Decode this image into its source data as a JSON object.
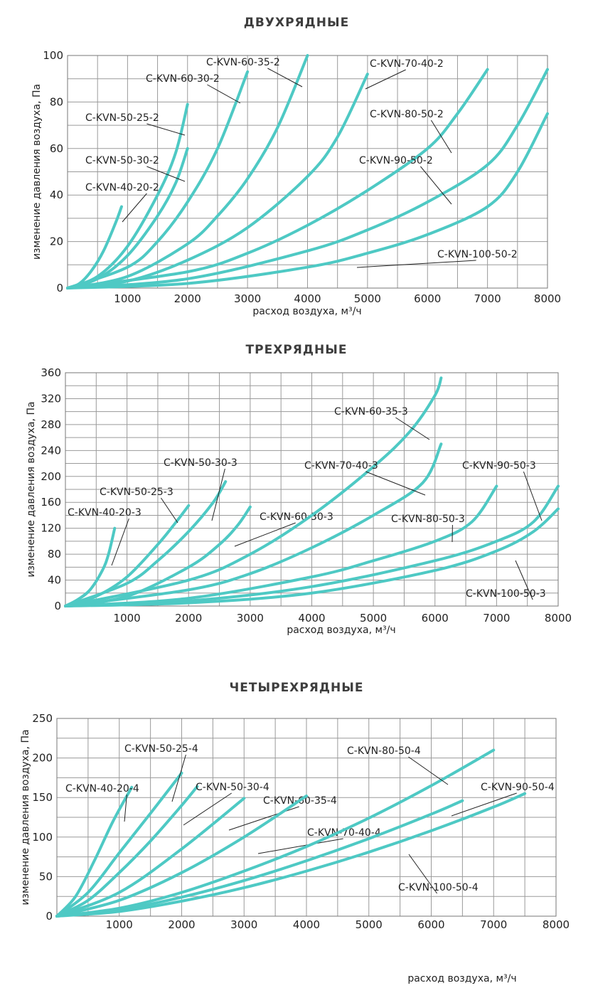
{
  "chart_data": [
    {
      "type": "line",
      "title": "ДВУХРЯДНЫЕ",
      "xlabel": "расход воздуха, м³/ч",
      "ylabel": "изменение давления воздуха, Па",
      "xlim": [
        0,
        8000
      ],
      "ylim": [
        0,
        100
      ],
      "xticks": [
        1000,
        2000,
        3000,
        4000,
        5000,
        6000,
        7000,
        8000
      ],
      "yticks": [
        0,
        20,
        40,
        60,
        80,
        100
      ],
      "grid": true,
      "line_color": "#4ec9c4",
      "series": [
        {
          "name": "C-KVN-40-20-2",
          "x": [
            0,
            200,
            400,
            600,
            800,
            900
          ],
          "y": [
            0,
            2,
            7.5,
            16,
            28,
            35
          ]
        },
        {
          "name": "C-KVN-50-25-2",
          "x": [
            0,
            500,
            1000,
            1500,
            1800,
            2000
          ],
          "y": [
            0,
            5,
            18,
            40,
            58,
            79
          ]
        },
        {
          "name": "C-KVN-50-30-2",
          "x": [
            0,
            500,
            1000,
            1500,
            1800,
            2000
          ],
          "y": [
            0,
            4,
            14,
            31,
            45,
            60
          ]
        },
        {
          "name": "C-KVN-60-30-2",
          "x": [
            0,
            1000,
            1500,
            2000,
            2500,
            3000
          ],
          "y": [
            0,
            9,
            20,
            37,
            60,
            93
          ]
        },
        {
          "name": "C-KVN-60-35-2",
          "x": [
            0,
            1000,
            2000,
            2500,
            3000,
            3500,
            4000
          ],
          "y": [
            0,
            5,
            19,
            31,
            47,
            69,
            100
          ]
        },
        {
          "name": "C-KVN-70-40-2",
          "x": [
            0,
            1000,
            2000,
            3000,
            4000,
            4500,
            5000
          ],
          "y": [
            0,
            3,
            12,
            26,
            48,
            65,
            92
          ]
        },
        {
          "name": "C-KVN-80-50-2",
          "x": [
            0,
            2000,
            3000,
            4000,
            5000,
            6000,
            6500,
            7000
          ],
          "y": [
            0,
            7,
            15,
            27,
            42,
            60,
            75,
            94
          ]
        },
        {
          "name": "C-KVN-90-50-2",
          "x": [
            0,
            2000,
            4000,
            5000,
            6000,
            7000,
            7500,
            8000
          ],
          "y": [
            0,
            4,
            16,
            25,
            37,
            53,
            70,
            94
          ]
        },
        {
          "name": "C-KVN-100-50-2",
          "x": [
            0,
            2000,
            4000,
            5000,
            6000,
            7000,
            7500,
            8000
          ],
          "y": [
            0,
            2,
            9,
            15,
            23,
            35,
            50,
            75
          ]
        }
      ]
    },
    {
      "type": "line",
      "title": "ТРЕХРЯДНЫЕ",
      "xlabel": "расход воздуха, м³/ч",
      "ylabel": "изменение давления воздуха, Па",
      "xlim": [
        0,
        8000
      ],
      "ylim": [
        0,
        360
      ],
      "xticks": [
        1000,
        2000,
        3000,
        4000,
        5000,
        6000,
        7000,
        8000
      ],
      "yticks": [
        0,
        40,
        80,
        120,
        160,
        200,
        240,
        280,
        320,
        360
      ],
      "grid": true,
      "line_color": "#4ec9c4",
      "series": [
        {
          "name": "C-KVN-40-20-3",
          "x": [
            0,
            200,
            400,
            600,
            700,
            800
          ],
          "y": [
            0,
            10,
            25,
            55,
            80,
            120
          ]
        },
        {
          "name": "C-KVN-50-25-3",
          "x": [
            0,
            500,
            1000,
            1500,
            1800,
            2000
          ],
          "y": [
            0,
            15,
            45,
            95,
            130,
            155
          ]
        },
        {
          "name": "C-KVN-50-30-3",
          "x": [
            0,
            1000,
            1500,
            2000,
            2400,
            2600
          ],
          "y": [
            0,
            35,
            70,
            115,
            160,
            192
          ]
        },
        {
          "name": "C-KVN-60-30-3",
          "x": [
            0,
            1000,
            2000,
            2500,
            2800,
            3000
          ],
          "y": [
            0,
            15,
            60,
            95,
            125,
            153
          ]
        },
        {
          "name": "C-KVN-60-35-3",
          "x": [
            0,
            2000,
            3000,
            4000,
            5000,
            5600,
            6000,
            6100
          ],
          "y": [
            0,
            40,
            80,
            140,
            215,
            270,
            325,
            352
          ]
        },
        {
          "name": "C-KVN-70-40-3",
          "x": [
            0,
            2000,
            3000,
            4000,
            5000,
            5800,
            6100
          ],
          "y": [
            0,
            25,
            50,
            90,
            140,
            190,
            250
          ]
        },
        {
          "name": "C-KVN-80-50-3",
          "x": [
            0,
            2000,
            4000,
            5000,
            6000,
            6600,
            7000
          ],
          "y": [
            0,
            12,
            45,
            70,
            100,
            130,
            185
          ]
        },
        {
          "name": "C-KVN-90-50-3",
          "x": [
            0,
            2000,
            4000,
            6000,
            7000,
            7600,
            8000
          ],
          "y": [
            0,
            8,
            30,
            70,
            100,
            130,
            185
          ]
        },
        {
          "name": "C-KVN-100-50-3",
          "x": [
            0,
            2000,
            4000,
            6000,
            7000,
            7600,
            8000
          ],
          "y": [
            0,
            5,
            20,
            55,
            85,
            115,
            150
          ]
        }
      ]
    },
    {
      "type": "line",
      "title": "ЧЕТЫРЕХРЯДНЫЕ",
      "xlabel": "расход воздуха, м³/ч",
      "ylabel": "изменение давления воздуха, Па",
      "xlim": [
        0,
        8000
      ],
      "ylim": [
        0,
        250
      ],
      "xticks": [
        1000,
        2000,
        3000,
        4000,
        5000,
        6000,
        7000,
        8000
      ],
      "yticks": [
        0,
        50,
        100,
        150,
        200,
        250
      ],
      "grid": true,
      "line_color": "#4ec9c4",
      "series": [
        {
          "name": "C-KVN-40-20-4",
          "x": [
            0,
            300,
            600,
            900,
            1200
          ],
          "y": [
            0,
            25,
            70,
            120,
            163
          ]
        },
        {
          "name": "C-KVN-50-25-4",
          "x": [
            0,
            500,
            1000,
            1500,
            2000
          ],
          "y": [
            0,
            30,
            80,
            130,
            181
          ]
        },
        {
          "name": "C-KVN-50-30-4",
          "x": [
            0,
            500,
            1000,
            1500,
            2000,
            2250
          ],
          "y": [
            0,
            20,
            55,
            95,
            140,
            164
          ]
        },
        {
          "name": "C-KVN-60-35-4",
          "x": [
            0,
            1000,
            2000,
            3000
          ],
          "y": [
            0,
            30,
            85,
            149
          ]
        },
        {
          "name": "C-KVN-70-40-4",
          "x": [
            0,
            1000,
            2000,
            3000,
            4000
          ],
          "y": [
            0,
            20,
            55,
            100,
            152
          ]
        },
        {
          "name": "C-KVN-80-50-4",
          "x": [
            0,
            1000,
            2000,
            3000,
            4000,
            5000,
            6000,
            7000
          ],
          "y": [
            0,
            10,
            30,
            57,
            88,
            124,
            165,
            210
          ]
        },
        {
          "name": "C-KVN-90-50-4",
          "x": [
            0,
            1000,
            2000,
            3000,
            4000,
            5000,
            6000,
            6500
          ],
          "y": [
            0,
            8,
            24,
            45,
            70,
            98,
            129,
            146
          ]
        },
        {
          "name": "C-KVN-100-50-4",
          "x": [
            0,
            1000,
            2000,
            3000,
            4000,
            5000,
            6000,
            7000,
            7500
          ],
          "y": [
            0,
            6,
            19,
            36,
            57,
            81,
            108,
            138,
            155
          ]
        }
      ]
    }
  ]
}
